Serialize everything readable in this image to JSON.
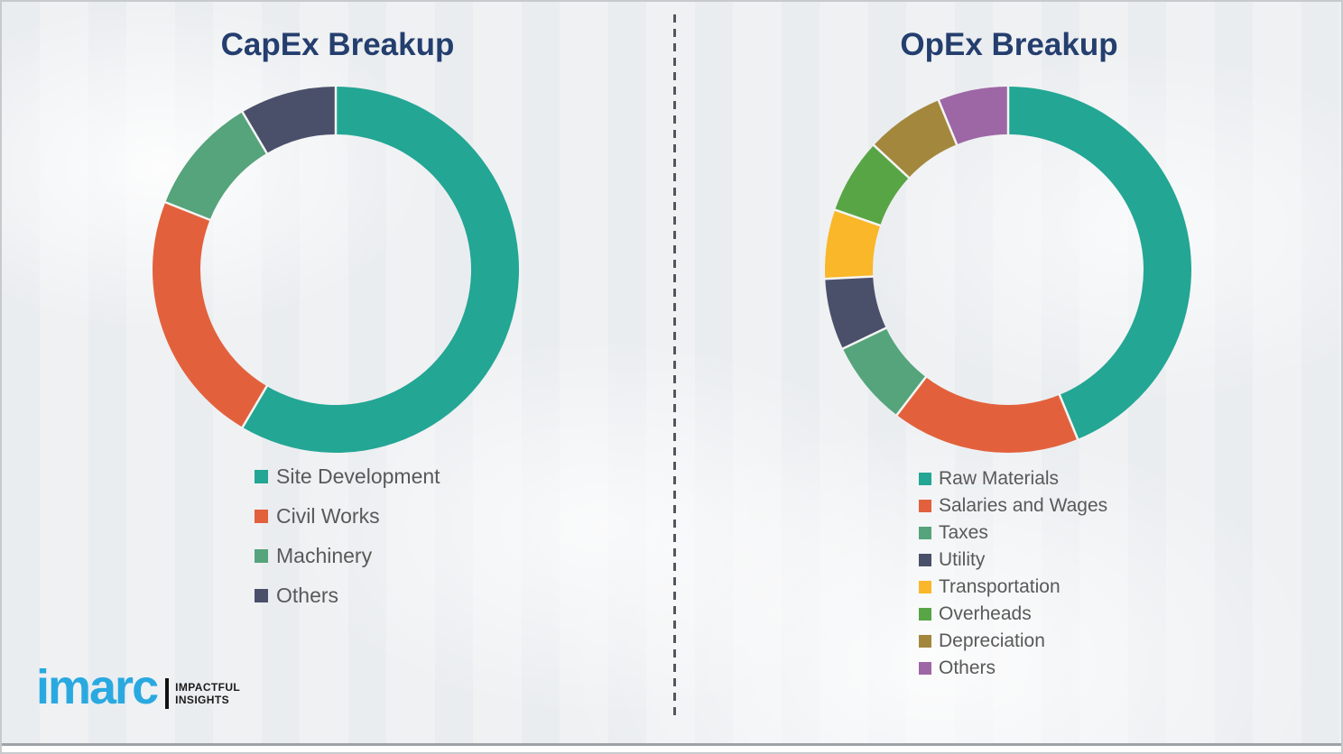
{
  "theme": {
    "background": "#EFF1F3",
    "title_color": "#243E6E",
    "legend_text_color": "#595959",
    "divider_color": "#55565B",
    "separator_color": "#F4F5F3",
    "border_color": "#C7CACC",
    "bottom_line_color": "#9EA2A6",
    "logo_blue": "#2AA9E0",
    "tagline_color": "#1A1A1A",
    "logo_bar_color": "#111111"
  },
  "chart_data": [
    {
      "type": "pie",
      "subtype": "donut",
      "title": "CapEx Breakup",
      "unit": "%",
      "values_estimated": true,
      "legend_position": "below-left",
      "segments": [
        {
          "label": "Site Development",
          "value": 58.5,
          "color": "#23A694"
        },
        {
          "label": "Civil Works",
          "value": 22.5,
          "color": "#E2613C"
        },
        {
          "label": "Machinery",
          "value": 10.5,
          "color": "#55A47B"
        },
        {
          "label": "Others",
          "value": 8.5,
          "color": "#4A506A"
        }
      ]
    },
    {
      "type": "pie",
      "subtype": "donut",
      "title": "OpEx Breakup",
      "unit": "%",
      "values_estimated": true,
      "legend_position": "below-left",
      "segments": [
        {
          "label": "Raw Materials",
          "value": 43.8,
          "color": "#23A694"
        },
        {
          "label": "Salaries and Wages",
          "value": 16.6,
          "color": "#E2613C"
        },
        {
          "label": "Taxes",
          "value": 7.5,
          "color": "#55A47B"
        },
        {
          "label": "Utility",
          "value": 6.3,
          "color": "#4A506A"
        },
        {
          "label": "Transportation",
          "value": 6.1,
          "color": "#F9B729"
        },
        {
          "label": "Overheads",
          "value": 6.6,
          "color": "#58A545"
        },
        {
          "label": "Depreciation",
          "value": 6.9,
          "color": "#A3873C"
        },
        {
          "label": "Others",
          "value": 6.2,
          "color": "#9D67A5"
        }
      ]
    }
  ],
  "branding": {
    "logo_text": "imarc",
    "tagline_line1": "IMPACTFUL",
    "tagline_line2": "INSIGHTS"
  }
}
